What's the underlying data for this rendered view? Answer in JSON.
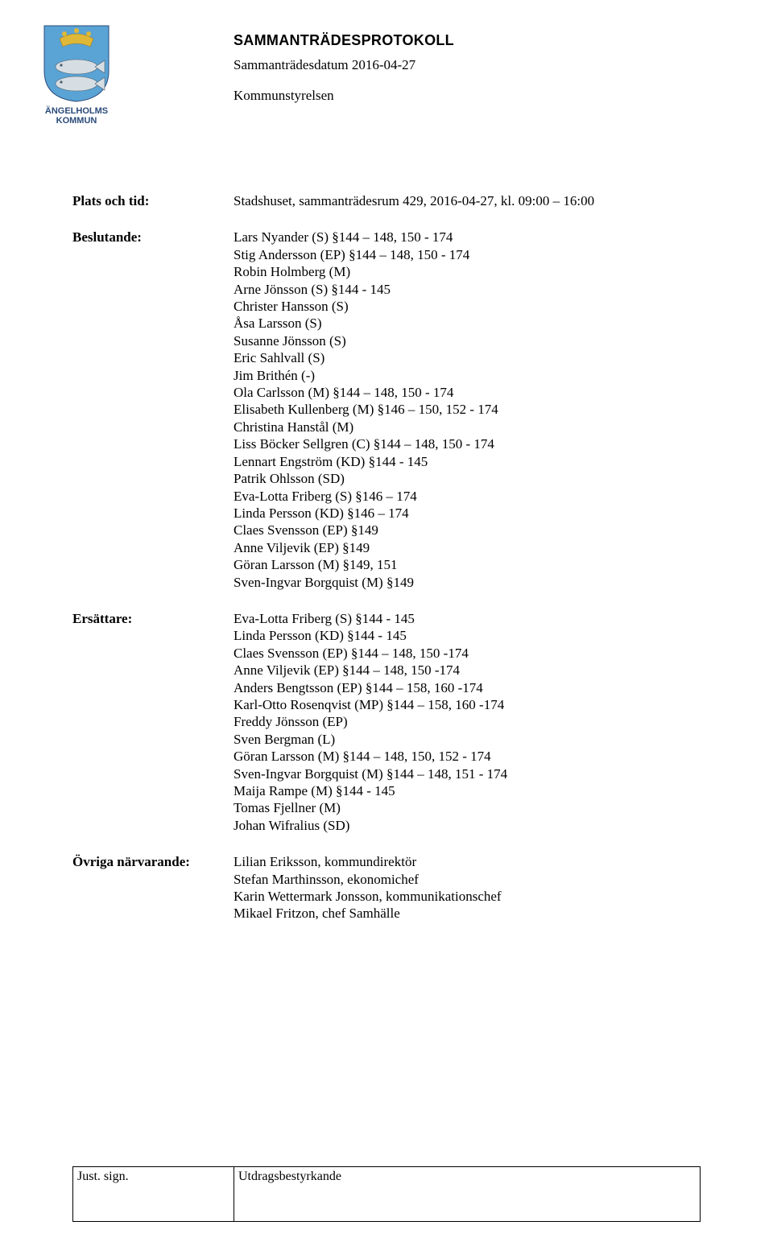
{
  "logo": {
    "line1": "ÄNGELHOLMS",
    "line2": "KOMMUN",
    "colors": {
      "shield_blue": "#5aa3d5",
      "crown_gold": "#e0b838",
      "fish_silver": "#d6dee4"
    }
  },
  "header": {
    "title": "SAMMANTRÄDESPROTOKOLL",
    "date_label": "Sammanträdesdatum",
    "date_value": "2016-04-27",
    "board": "Kommunstyrelsen"
  },
  "rows": {
    "plats": {
      "label": "Plats och tid:",
      "value": "Stadshuset, sammanträdesrum 429, 2016-04-27, kl. 09:00 – 16:00"
    },
    "beslutande": {
      "label": "Beslutande:",
      "lines": [
        "Lars Nyander (S) §144 – 148, 150 - 174",
        "Stig Andersson (EP) §144 – 148, 150 - 174",
        "Robin Holmberg (M)",
        "Arne Jönsson (S) §144 - 145",
        "Christer Hansson (S)",
        "Åsa Larsson (S)",
        "Susanne Jönsson (S)",
        "Eric Sahlvall (S)",
        "Jim Brithén (-)",
        "Ola Carlsson (M) §144 – 148, 150 - 174",
        "Elisabeth Kullenberg (M) §146 – 150, 152 - 174",
        "Christina Hanstål (M)",
        "Liss Böcker Sellgren (C) §144 – 148, 150 - 174",
        "Lennart Engström (KD) §144 - 145",
        "Patrik Ohlsson (SD)",
        "Eva-Lotta Friberg (S) §146 – 174",
        "Linda Persson (KD) §146 – 174",
        "Claes Svensson (EP) §149",
        "Anne Viljevik (EP) §149",
        "Göran Larsson (M) §149, 151",
        "Sven-Ingvar Borgquist (M) §149"
      ]
    },
    "ersattare": {
      "label": "Ersättare:",
      "lines": [
        "Eva-Lotta Friberg (S) §144 - 145",
        "Linda Persson (KD) §144 - 145",
        "Claes Svensson (EP) §144 – 148, 150 -174",
        "Anne Viljevik (EP) §144 – 148, 150 -174",
        "Anders Bengtsson (EP) §144 – 158, 160 -174",
        "Karl-Otto Rosenqvist (MP) §144 – 158, 160 -174",
        "Freddy Jönsson (EP)",
        "Sven Bergman (L)",
        "Göran Larsson (M) §144 – 148, 150, 152 - 174",
        "Sven-Ingvar Borgquist (M) §144 – 148, 151 - 174",
        "Maija Rampe (M) §144 - 145",
        "Tomas Fjellner (M)",
        "Johan Wifralius (SD)"
      ]
    },
    "ovriga": {
      "label": "Övriga närvarande:",
      "lines": [
        "Lilian Eriksson, kommundirektör",
        "Stefan Marthinsson, ekonomichef",
        "Karin Wettermark Jonsson, kommunikationschef",
        "Mikael Fritzon, chef Samhälle"
      ]
    }
  },
  "footer": {
    "left": "Just. sign.",
    "right": "Utdragsbestyrkande"
  }
}
